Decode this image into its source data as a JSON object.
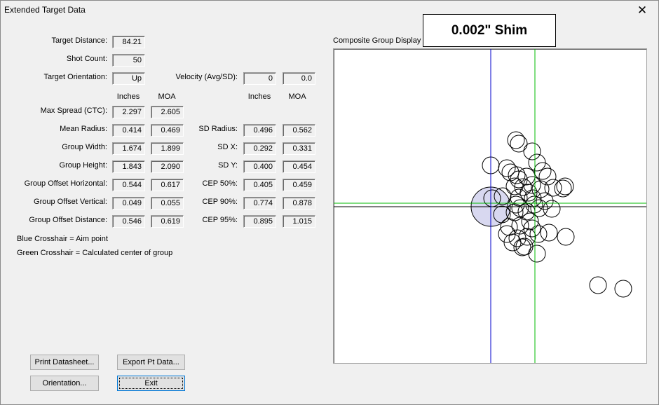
{
  "window": {
    "title": "Extended Target Data"
  },
  "shim_label": "0.002\" Shim",
  "plot": {
    "title": "Composite Group Display",
    "aim_color": "#0000cc",
    "center_color": "#00bb00"
  },
  "info": {
    "target_distance_label": "Target Distance:",
    "target_distance": "84.21",
    "shot_count_label": "Shot Count:",
    "shot_count": "50",
    "orientation_label": "Target Orientation:",
    "orientation": "Up",
    "velocity_label": "Velocity (Avg/SD):",
    "velocity_avg": "0",
    "velocity_sd": "0.0"
  },
  "headers": {
    "inches": "Inches",
    "moa": "MOA"
  },
  "left_stats": [
    {
      "label": "Max Spread (CTC):",
      "inches": "2.297",
      "moa": "2.605"
    },
    {
      "label": "Mean Radius:",
      "inches": "0.414",
      "moa": "0.469"
    },
    {
      "label": "Group Width:",
      "inches": "1.674",
      "moa": "1.899"
    },
    {
      "label": "Group Height:",
      "inches": "1.843",
      "moa": "2.090"
    },
    {
      "label": "Group Offset Horizontal:",
      "inches": "0.544",
      "moa": "0.617"
    },
    {
      "label": "Group Offset Vertical:",
      "inches": "0.049",
      "moa": "0.055"
    },
    {
      "label": "Group Offset Distance:",
      "inches": "0.546",
      "moa": "0.619"
    }
  ],
  "right_stats": [
    {
      "label": "SD Radius:",
      "inches": "0.496",
      "moa": "0.562"
    },
    {
      "label": "SD X:",
      "inches": "0.292",
      "moa": "0.331"
    },
    {
      "label": "SD Y:",
      "inches": "0.400",
      "moa": "0.454"
    },
    {
      "label": "CEP 50%:",
      "inches": "0.405",
      "moa": "0.459"
    },
    {
      "label": "CEP 90%:",
      "inches": "0.774",
      "moa": "0.878"
    },
    {
      "label": "CEP 95%:",
      "inches": "0.895",
      "moa": "1.015"
    }
  ],
  "legend": {
    "blue": "Blue Crosshair = Aim point",
    "green": "Green Crosshair = Calculated center of group"
  },
  "buttons": {
    "print": "Print Datasheet...",
    "export": "Export Pt Data...",
    "orientation": "Orientation...",
    "exit": "Exit"
  }
}
